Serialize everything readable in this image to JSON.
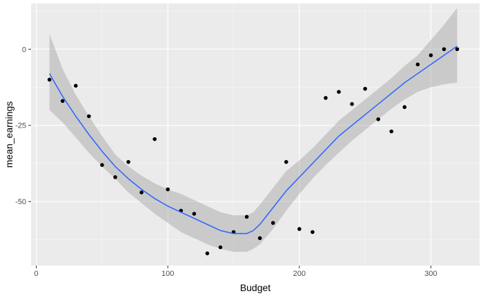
{
  "chart_data": {
    "type": "scatter",
    "xlabel": "Budget",
    "ylabel": "mean_earnings",
    "xlim": [
      -4,
      337
    ],
    "ylim": [
      -71,
      15
    ],
    "x_ticks": [
      0,
      100,
      200,
      300
    ],
    "y_ticks": [
      0,
      -25,
      -50
    ],
    "x_tick_labels": [
      "0",
      "100",
      "200",
      "300"
    ],
    "y_tick_labels": [
      "0",
      "-25",
      "-50"
    ],
    "grid": true,
    "panel_background": "#EBEBEB",
    "point_color": "#000000",
    "line_color": "#3366FF",
    "band_color": "#999999",
    "series": [
      {
        "type": "scatter",
        "x": [
          10,
          20,
          30,
          40,
          50,
          60,
          70,
          80,
          90,
          100,
          110,
          120,
          130,
          140,
          150,
          160,
          170,
          180,
          190,
          200,
          210,
          220,
          230,
          240,
          250,
          260,
          270,
          280,
          290,
          300,
          310,
          320
        ],
        "y": [
          -10,
          -17,
          -12,
          -22,
          -38,
          -42,
          -37,
          -47,
          -29.5,
          -46,
          -53,
          -54,
          -67,
          -65,
          -60,
          -55,
          -62,
          -57,
          -37,
          -59,
          -60,
          -16,
          -14,
          -18,
          -13,
          -23,
          -27,
          -19,
          -5,
          -2,
          0,
          0
        ]
      },
      {
        "type": "line",
        "x": [
          10,
          20,
          30,
          40,
          50,
          60,
          70,
          80,
          90,
          100,
          110,
          120,
          130,
          140,
          150,
          160,
          165,
          170,
          180,
          190,
          200,
          210,
          220,
          230,
          240,
          250,
          260,
          270,
          280,
          290,
          300,
          310,
          320
        ],
        "y": [
          -8,
          -15.5,
          -22,
          -28,
          -33.5,
          -38.5,
          -42.5,
          -46,
          -49,
          -51.5,
          -53.5,
          -55.5,
          -57.5,
          -59.5,
          -60.5,
          -60.5,
          -59.5,
          -57.5,
          -52,
          -46.5,
          -42,
          -37.5,
          -33,
          -28.5,
          -25,
          -21.5,
          -18,
          -14.5,
          -11,
          -8,
          -5,
          -2,
          1
        ]
      },
      {
        "type": "band",
        "x": [
          10,
          20,
          30,
          40,
          50,
          60,
          70,
          80,
          90,
          100,
          110,
          120,
          130,
          140,
          150,
          160,
          165,
          170,
          180,
          190,
          200,
          210,
          220,
          230,
          240,
          250,
          260,
          270,
          280,
          290,
          300,
          310,
          320
        ],
        "lower": [
          -20,
          -24,
          -29,
          -34,
          -38.5,
          -42.5,
          -47,
          -50.5,
          -54,
          -57,
          -60,
          -62,
          -64,
          -65.5,
          -66.5,
          -66.5,
          -65.5,
          -64,
          -59,
          -53,
          -47.5,
          -42.5,
          -38,
          -34,
          -30,
          -26.5,
          -23,
          -19.5,
          -16.5,
          -14,
          -12.5,
          -11.5,
          -11
        ],
        "upper": [
          5,
          -6.5,
          -15,
          -22,
          -28.5,
          -34.5,
          -38.5,
          -41.5,
          -44,
          -46,
          -47.5,
          -49.5,
          -51.5,
          -53.5,
          -54.5,
          -54.5,
          -53.5,
          -51,
          -45.5,
          -40,
          -36.5,
          -32.5,
          -28,
          -23.5,
          -20,
          -16.5,
          -13,
          -9.5,
          -5.5,
          -2,
          3,
          8,
          13.5
        ]
      }
    ]
  }
}
